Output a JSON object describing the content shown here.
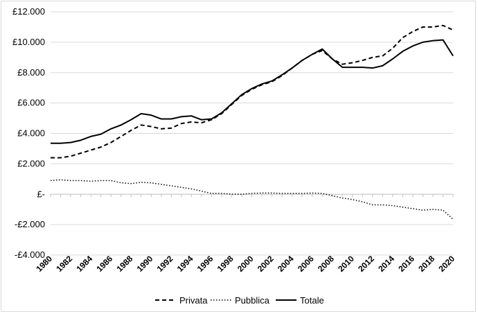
{
  "chart_data": {
    "type": "line",
    "title": "",
    "xlabel": "",
    "ylabel": "",
    "ylim": [
      -4000,
      12000
    ],
    "y_ticks": [
      -4000,
      -2000,
      0,
      2000,
      4000,
      6000,
      8000,
      10000,
      12000
    ],
    "y_tick_labels": [
      "-£4.000",
      "-£2.000",
      "£-",
      "£2.000",
      "£4.000",
      "£6.000",
      "£8.000",
      "£10.000",
      "£12.000"
    ],
    "x_tick_labels": [
      "1980",
      "1982",
      "1984",
      "1986",
      "1988",
      "1990",
      "1992",
      "1994",
      "1996",
      "1998",
      "2000",
      "2002",
      "2004",
      "2006",
      "2008",
      "2010",
      "2012",
      "2014",
      "2016",
      "2018",
      "2020"
    ],
    "x": [
      1980,
      1981,
      1982,
      1983,
      1984,
      1985,
      1986,
      1987,
      1988,
      1989,
      1990,
      1991,
      1992,
      1993,
      1994,
      1995,
      1996,
      1997,
      1998,
      1999,
      2000,
      2001,
      2002,
      2003,
      2004,
      2005,
      2006,
      2007,
      2008,
      2009,
      2010,
      2011,
      2012,
      2013,
      2014,
      2015,
      2016,
      2017,
      2018,
      2019,
      2020
    ],
    "grid": true,
    "legend_position": "bottom",
    "series": [
      {
        "name": "Privata",
        "style": "dashed",
        "values": [
          2400,
          2400,
          2500,
          2700,
          2900,
          3100,
          3400,
          3800,
          4200,
          4550,
          4450,
          4300,
          4350,
          4650,
          4750,
          4700,
          4900,
          5300,
          5900,
          6500,
          6900,
          7200,
          7400,
          7800,
          8300,
          8800,
          9200,
          9450,
          8900,
          8550,
          8650,
          8800,
          9000,
          9100,
          9600,
          10300,
          10700,
          11000,
          11000,
          11100,
          10800
        ]
      },
      {
        "name": "Pubblica",
        "style": "dotted",
        "values": [
          900,
          950,
          900,
          900,
          850,
          900,
          900,
          750,
          700,
          780,
          750,
          650,
          550,
          450,
          350,
          200,
          50,
          50,
          0,
          0,
          50,
          80,
          80,
          50,
          50,
          50,
          80,
          50,
          -100,
          -250,
          -350,
          -500,
          -700,
          -700,
          -750,
          -850,
          -950,
          -1050,
          -1000,
          -1050,
          -1650
        ]
      },
      {
        "name": "Totale",
        "style": "solid",
        "values": [
          3350,
          3350,
          3400,
          3550,
          3800,
          3950,
          4300,
          4550,
          4900,
          5300,
          5200,
          4950,
          4950,
          5100,
          5150,
          4900,
          4950,
          5350,
          5950,
          6550,
          6950,
          7250,
          7450,
          7850,
          8300,
          8800,
          9200,
          9550,
          8900,
          8350,
          8350,
          8350,
          8300,
          8450,
          8900,
          9400,
          9750,
          10000,
          10100,
          10150,
          9100
        ]
      }
    ]
  }
}
